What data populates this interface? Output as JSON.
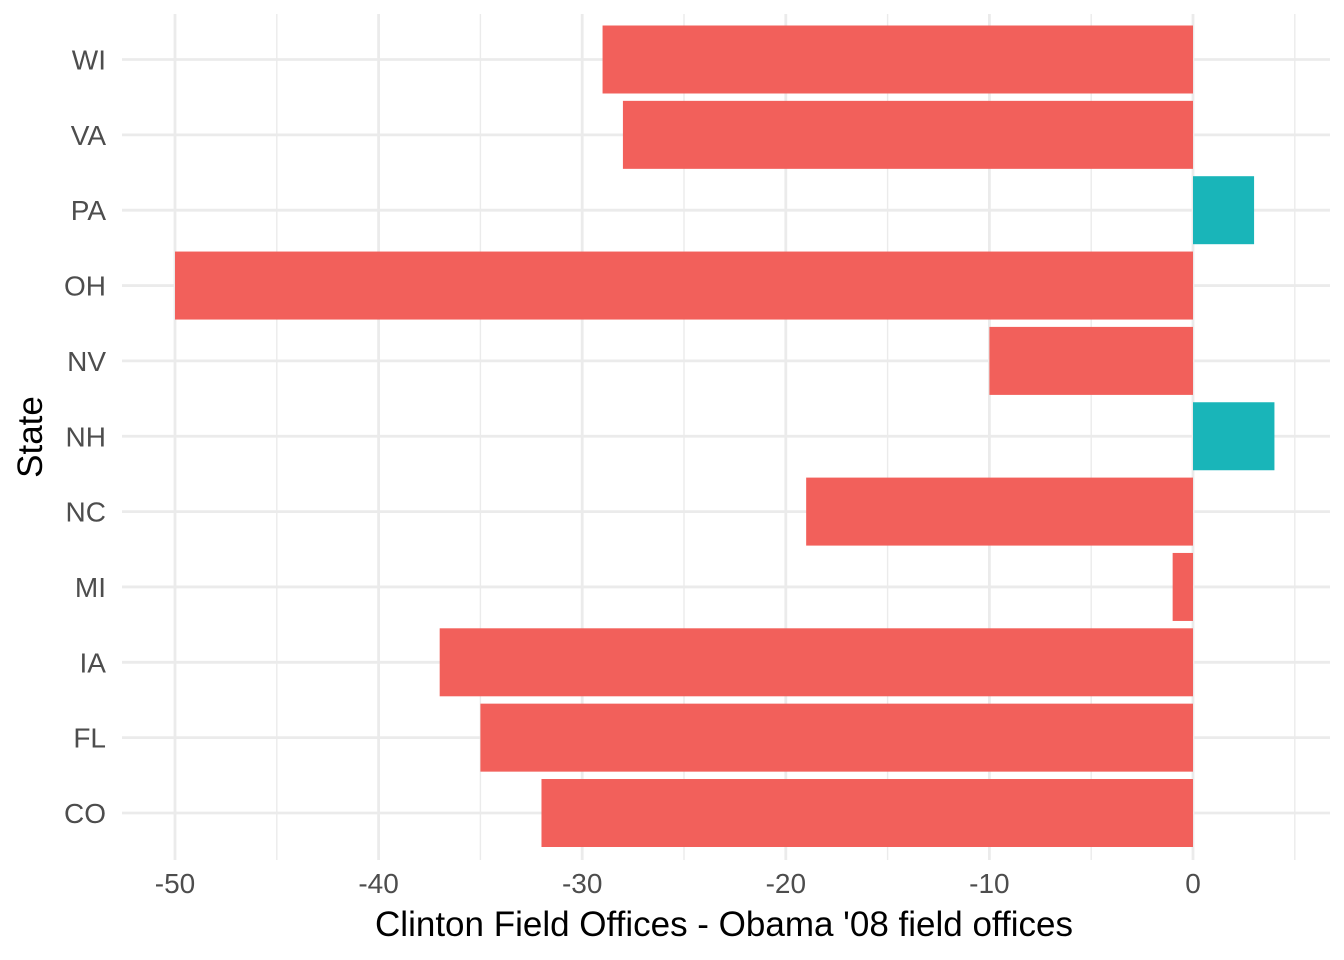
{
  "chart_data": {
    "type": "bar",
    "orientation": "horizontal",
    "categories": [
      "CO",
      "FL",
      "IA",
      "MI",
      "NC",
      "NH",
      "NV",
      "OH",
      "PA",
      "VA",
      "WI"
    ],
    "values": [
      -32,
      -35,
      -37,
      -1,
      -19,
      4,
      -10,
      -50,
      3,
      -28,
      -29
    ],
    "xlabel": "Clinton Field Offices - Obama '08 field offices",
    "ylabel": "State",
    "xlim": [
      -50,
      4
    ],
    "x_ticks": [
      -50,
      -40,
      -30,
      -20,
      -10,
      0
    ],
    "x_tick_labels": [
      "-50",
      "-40",
      "-30",
      "-20",
      "-10",
      "0"
    ],
    "grid": true,
    "legend": "none",
    "colors": {
      "negative": "#f2605b",
      "positive": "#19b5b9",
      "grid": "#ebebeb",
      "tick_text": "#4d4d4d",
      "title_text": "#000000"
    }
  }
}
